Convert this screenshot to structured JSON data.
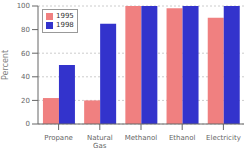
{
  "chart_data": {
    "type": "bar",
    "categories": [
      "Propane",
      "Natural\nGas",
      "Methanol",
      "Ethanol",
      "Electricity"
    ],
    "series": [
      {
        "name": "1995",
        "color": "#F08080",
        "values": [
          22,
          20,
          100,
          98,
          90
        ]
      },
      {
        "name": "1998",
        "color": "#3333CC",
        "values": [
          50,
          85,
          100,
          100,
          100
        ]
      }
    ],
    "ylabel": "Percent",
    "ylim": [
      0,
      100
    ],
    "yticks": [
      0,
      20,
      40,
      60,
      80,
      100
    ],
    "grid": true,
    "legend": "upper left"
  }
}
